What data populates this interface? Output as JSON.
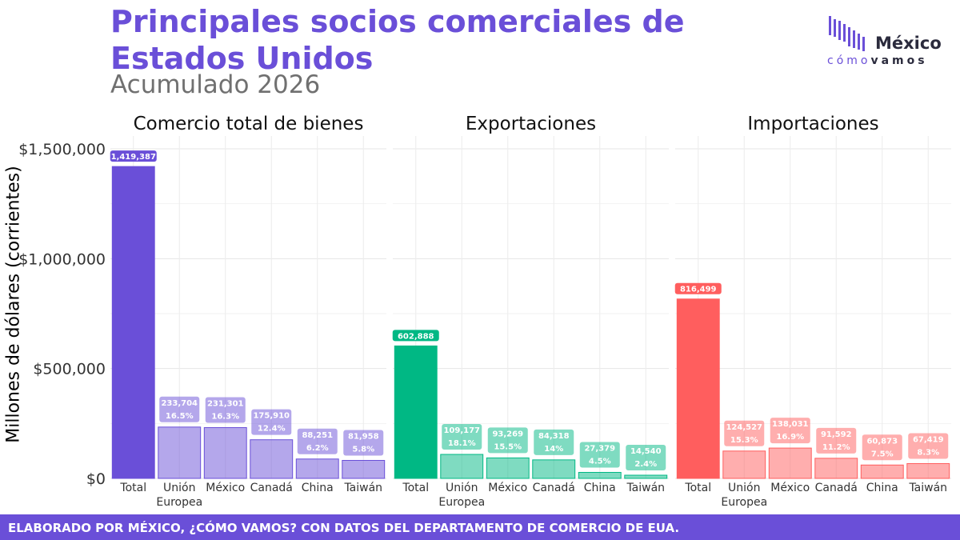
{
  "header": {
    "title": "Principales socios comerciales de Estados Unidos",
    "subtitle": "Acumulado 2026"
  },
  "logo": {
    "word": "México",
    "sub_prefix": "cómo",
    "sub_bold": "vamos",
    "color": "#6a4fd8"
  },
  "footer": {
    "text": "ELABORADO POR MÉXICO, ¿CÓMO VAMOS? CON DATOS DEL DEPARTAMENTO DE COMERCIO DE EUA."
  },
  "chart_data": {
    "type": "bar",
    "ylabel": "Millones de dólares (corrientes)",
    "ylim": [
      0,
      1500000
    ],
    "yticks": [
      0,
      500000,
      1000000,
      1500000
    ],
    "ytick_labels": [
      "$0",
      "$500,000",
      "$1,000,000",
      "$1,500,000"
    ],
    "grid": true,
    "categories": [
      "Total",
      "Unión Europea",
      "México",
      "Canadá",
      "China",
      "Taiwán"
    ],
    "category_label_lines": [
      [
        "Total"
      ],
      [
        "Unión",
        "Europea"
      ],
      [
        "México"
      ],
      [
        "Canadá"
      ],
      [
        "China"
      ],
      [
        "Taiwán"
      ]
    ],
    "panels": [
      {
        "name": "Comercio total de bienes",
        "color": "#6a4fd8",
        "values": [
          1419387,
          233704,
          231301,
          175910,
          88251,
          81958
        ],
        "value_labels": [
          "1,419,387",
          "233,704",
          "231,301",
          "175,910",
          "88,251",
          "81,958"
        ],
        "share_labels": [
          "",
          "16.5%",
          "16.3%",
          "12.4%",
          "6.2%",
          "5.8%"
        ]
      },
      {
        "name": "Exportaciones",
        "color": "#00b884",
        "values": [
          602888,
          109177,
          93269,
          84318,
          27379,
          14540
        ],
        "value_labels": [
          "602,888",
          "109,177",
          "93,269",
          "84,318",
          "27,379",
          "14,540"
        ],
        "share_labels": [
          "",
          "18.1%",
          "15.5%",
          "14%",
          "4.5%",
          "2.4%"
        ]
      },
      {
        "name": "Importaciones",
        "color": "#ff5e5e",
        "values": [
          816499,
          124527,
          138031,
          91592,
          60873,
          67419
        ],
        "value_labels": [
          "816,499",
          "124,527",
          "138,031",
          "91,592",
          "60,873",
          "67,419"
        ],
        "share_labels": [
          "",
          "15.3%",
          "16.9%",
          "11.2%",
          "7.5%",
          "8.3%"
        ]
      }
    ]
  }
}
